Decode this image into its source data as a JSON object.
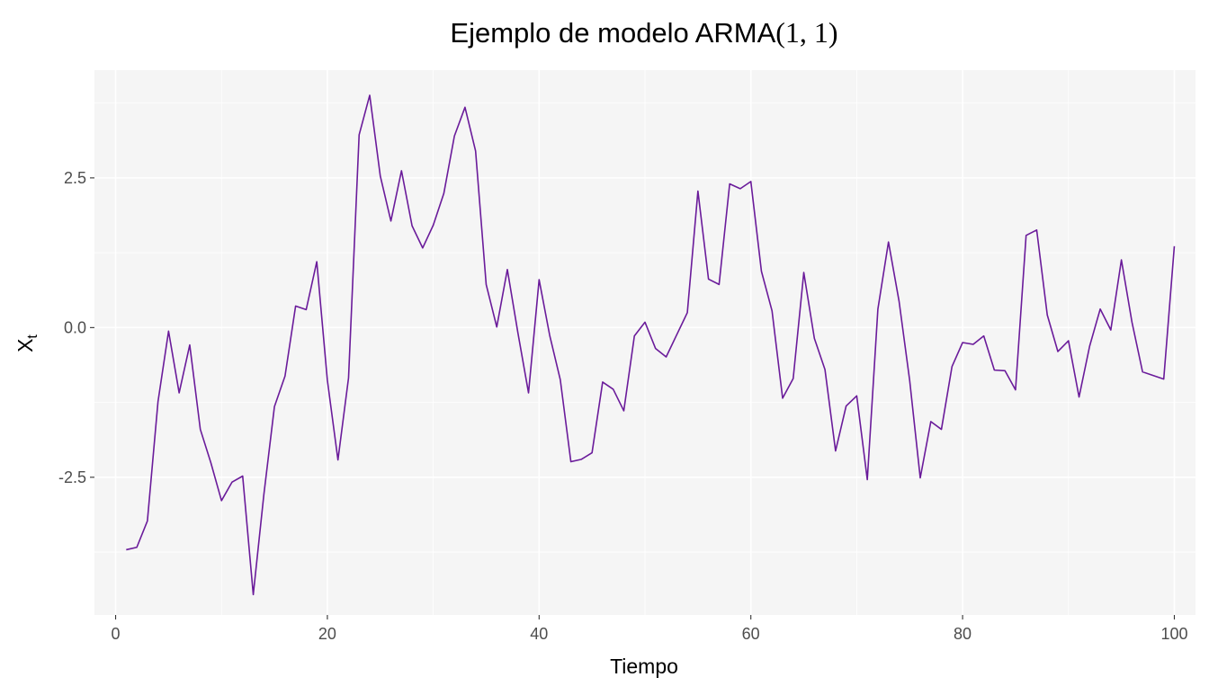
{
  "chart_data": {
    "type": "line",
    "title": {
      "text": "Ejemplo de modelo ARMA",
      "math": "(1, 1)"
    },
    "xlabel": "Tiempo",
    "ylabel": {
      "base": "X",
      "subscript": "t"
    },
    "xlim": [
      -2,
      102
    ],
    "ylim": [
      -4.8,
      4.3
    ],
    "x_ticks": [
      0,
      20,
      40,
      60,
      80,
      100
    ],
    "x_tick_labels": [
      "0",
      "20",
      "40",
      "60",
      "80",
      "100"
    ],
    "y_ticks": [
      -2.5,
      0,
      2.5
    ],
    "y_tick_labels": [
      "-2.5",
      "0.0",
      "2.5"
    ],
    "grid": true,
    "line_color": "#6a1b9a",
    "panel_background": "#f5f5f5",
    "grid_color": "#ffffff",
    "x": [
      1,
      2,
      3,
      4,
      5,
      6,
      7,
      8,
      9,
      10,
      11,
      12,
      13,
      14,
      15,
      16,
      17,
      18,
      19,
      20,
      21,
      22,
      23,
      24,
      25,
      26,
      27,
      28,
      29,
      30,
      31,
      32,
      33,
      34,
      35,
      36,
      37,
      38,
      39,
      40,
      41,
      42,
      43,
      44,
      45,
      46,
      47,
      48,
      49,
      50,
      51,
      52,
      53,
      54,
      55,
      56,
      57,
      58,
      59,
      60,
      61,
      62,
      63,
      64,
      65,
      66,
      67,
      68,
      69,
      70,
      71,
      72,
      73,
      74,
      75,
      76,
      77,
      78,
      79,
      80,
      81,
      82,
      83,
      84,
      85,
      86,
      87,
      88,
      89,
      90,
      91,
      92,
      93,
      94,
      95,
      96,
      97,
      98,
      99,
      100
    ],
    "series": [
      {
        "values": [
          -3.71,
          -3.67,
          -3.23,
          -1.24,
          -0.06,
          -1.09,
          -0.29,
          -1.7,
          -2.26,
          -2.89,
          -2.58,
          -2.48,
          -4.46,
          -2.79,
          -1.32,
          -0.81,
          0.36,
          0.3,
          1.1,
          -0.88,
          -2.21,
          -0.84,
          3.22,
          3.88,
          2.53,
          1.78,
          2.62,
          1.7,
          1.33,
          1.71,
          2.24,
          3.2,
          3.68,
          2.95,
          0.72,
          0.01,
          0.97,
          -0.09,
          -1.09,
          0.8,
          -0.13,
          -0.87,
          -2.24,
          -2.2,
          -2.09,
          -0.91,
          -1.03,
          -1.39,
          -0.14,
          0.09,
          -0.35,
          -0.49,
          -0.12,
          0.25,
          2.28,
          0.81,
          0.72,
          2.4,
          2.32,
          2.44,
          0.94,
          0.28,
          -1.18,
          -0.85,
          0.92,
          -0.18,
          -0.7,
          -2.06,
          -1.31,
          -1.14,
          -2.54,
          0.31,
          1.43,
          0.44,
          -0.88,
          -2.51,
          -1.57,
          -1.7,
          -0.65,
          -0.25,
          -0.28,
          -0.14,
          -0.71,
          -0.72,
          -1.04,
          1.54,
          1.63,
          0.21,
          -0.4,
          -0.22,
          -1.16,
          -0.31,
          0.31,
          -0.04,
          1.13,
          0.09,
          -0.74,
          -0.8,
          -0.86,
          1.36
        ]
      }
    ]
  }
}
